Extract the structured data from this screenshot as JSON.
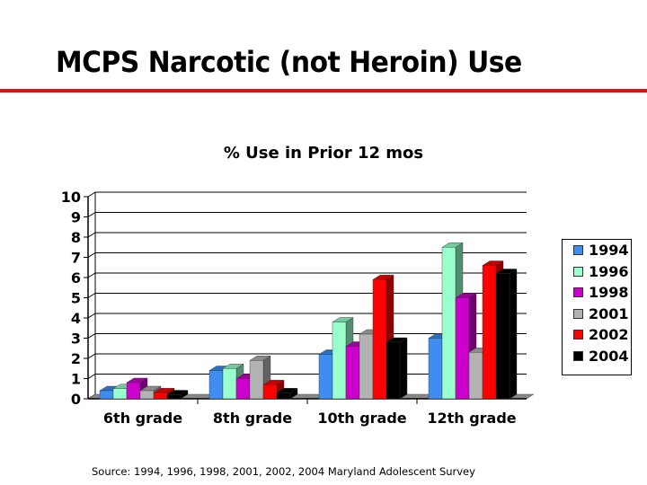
{
  "slide": {
    "title": "MCPS Narcotic (not Heroin) Use",
    "rule_color": "#e01010",
    "source": "Source: 1994, 1996, 1998, 2001, 2002, 2004 Maryland Adolescent Survey"
  },
  "chart_data": {
    "type": "bar",
    "style": "3d-clustered-column",
    "title": "% Use in Prior 12 mos",
    "xlabel": "",
    "ylabel": "",
    "ylim": [
      0,
      10
    ],
    "yticks": [
      0,
      1,
      2,
      3,
      4,
      5,
      6,
      7,
      8,
      9,
      10
    ],
    "grid": true,
    "legend_position": "right",
    "categories": [
      "6th grade",
      "8th grade",
      "10th grade",
      "12th grade"
    ],
    "series": [
      {
        "name": "1994",
        "color": "#3d8ef0",
        "values": [
          0.4,
          1.4,
          2.2,
          3.0
        ]
      },
      {
        "name": "1996",
        "color": "#99ffcc",
        "values": [
          0.5,
          1.5,
          3.8,
          7.5
        ]
      },
      {
        "name": "1998",
        "color": "#cc00cc",
        "values": [
          0.8,
          1.0,
          2.6,
          5.0
        ]
      },
      {
        "name": "2001",
        "color": "#b3b3b3",
        "values": [
          0.4,
          1.9,
          3.2,
          2.3
        ]
      },
      {
        "name": "2002",
        "color": "#ff0000",
        "values": [
          0.3,
          0.7,
          5.9,
          6.6
        ]
      },
      {
        "name": "2004",
        "color": "#000000",
        "values": [
          0.2,
          0.3,
          2.8,
          6.2
        ]
      }
    ]
  }
}
